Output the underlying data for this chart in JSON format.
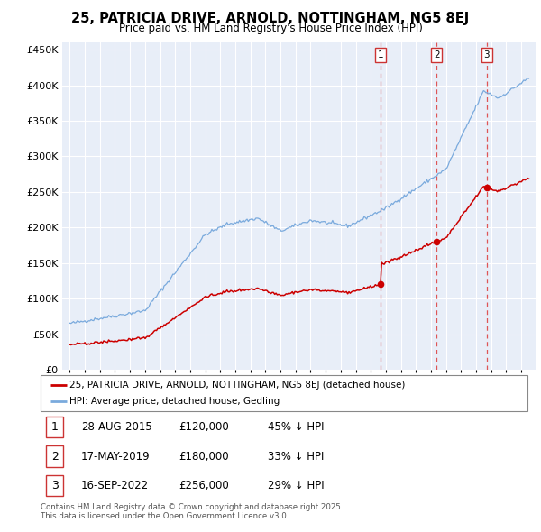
{
  "title": "25, PATRICIA DRIVE, ARNOLD, NOTTINGHAM, NG5 8EJ",
  "subtitle": "Price paid vs. HM Land Registry's House Price Index (HPI)",
  "legend_property": "25, PATRICIA DRIVE, ARNOLD, NOTTINGHAM, NG5 8EJ (detached house)",
  "legend_hpi": "HPI: Average price, detached house, Gedling",
  "property_color": "#cc0000",
  "hpi_color": "#7aaadd",
  "background_color": "#e8eef8",
  "grid_color": "#ffffff",
  "ylim": [
    0,
    460000
  ],
  "yticks": [
    0,
    50000,
    100000,
    150000,
    200000,
    250000,
    300000,
    350000,
    400000,
    450000
  ],
  "sale_points": [
    {
      "date": 2015.66,
      "price": 120000,
      "label": "1",
      "label_date": "28-AUG-2015",
      "pct": "45% ↓ HPI"
    },
    {
      "date": 2019.37,
      "price": 180000,
      "label": "2",
      "label_date": "17-MAY-2019",
      "pct": "33% ↓ HPI"
    },
    {
      "date": 2022.71,
      "price": 256000,
      "label": "3",
      "label_date": "16-SEP-2022",
      "pct": "29% ↓ HPI"
    }
  ],
  "footer": "Contains HM Land Registry data © Crown copyright and database right 2025.\nThis data is licensed under the Open Government Licence v3.0."
}
